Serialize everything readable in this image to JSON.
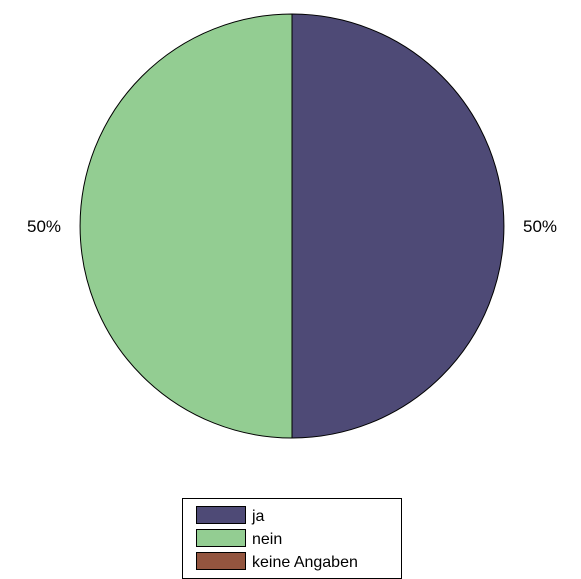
{
  "chart_data": {
    "type": "pie",
    "categories": [
      "ja",
      "nein",
      "keine Angaben"
    ],
    "values": [
      50,
      50,
      0
    ],
    "percent_labels": [
      "50%",
      "50%",
      ""
    ],
    "colors": [
      "#4e4a76",
      "#93cd92",
      "#93553f"
    ],
    "legend_position": "bottom-center",
    "title": ""
  }
}
